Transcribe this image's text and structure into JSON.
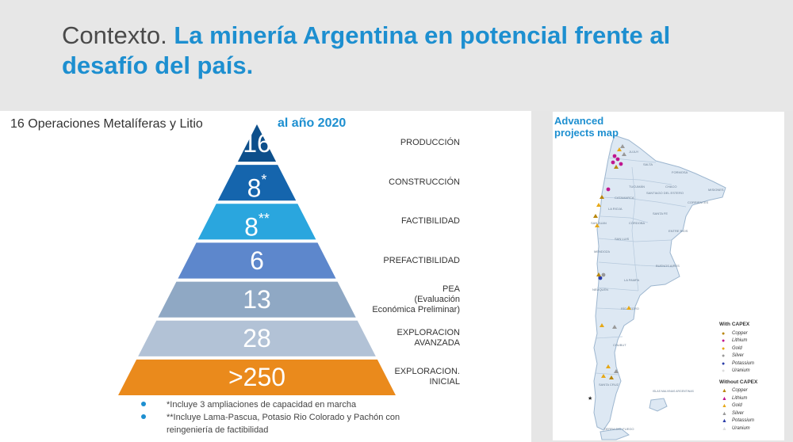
{
  "header": {
    "title_pre": "Contexto.",
    "title_main": "La minería Argentina en potencial frente al desafío del país."
  },
  "pyramid": {
    "label": "16 Operaciones Metalíferas y Litio",
    "year": "al año 2020",
    "tiers": [
      {
        "number": "16",
        "sup": "",
        "stage": "PRODUCCIÓN",
        "color": "#0d4f8b"
      },
      {
        "number": "8",
        "sup": "*",
        "stage": "CONSTRUCCIÓN",
        "color": "#1565ad"
      },
      {
        "number": "8",
        "sup": "**",
        "stage": "FACTIBILIDAD",
        "color": "#2aa6de"
      },
      {
        "number": "6",
        "sup": "",
        "stage": "PREFACTIBILIDAD",
        "color": "#5d87cc"
      },
      {
        "number": "13",
        "sup": "",
        "stage": "PEA\n(Evaluación\nEconómica Preliminar)",
        "color": "#8fa8c4"
      },
      {
        "number": "28",
        "sup": "",
        "stage": "EXPLORACION\nAVANZADA",
        "color": "#b2c2d6"
      },
      {
        "number": ">250",
        "sup": "",
        "stage": "EXPLORACION.\nINICIAL",
        "color": "#ea8a1c"
      }
    ]
  },
  "notes": [
    "*Incluye 3 ampliaciones de capacidad en marcha",
    "**Incluye Lama-Pascua, Potasio Rio Colorado y Pachón con reingeniería de factibilidad"
  ],
  "map": {
    "title": "Advanced projects map",
    "legend_with": {
      "heading": "With CAPEX",
      "items": [
        {
          "label": "Copper",
          "color": "#b8860b",
          "icon": "circle-icon"
        },
        {
          "label": "Lithium",
          "color": "#c0168f",
          "icon": "circle-icon"
        },
        {
          "label": "Gold",
          "color": "#e6a817",
          "icon": "circle-icon"
        },
        {
          "label": "Silver",
          "color": "#999999",
          "icon": "circle-icon"
        },
        {
          "label": "Potassium",
          "color": "#2b3da8",
          "icon": "circle-icon"
        },
        {
          "label": "Uranium",
          "color": "#dddddd",
          "icon": "circle-icon"
        }
      ]
    },
    "legend_without": {
      "heading": "Without CAPEX",
      "items": [
        {
          "label": "Copper",
          "color": "#b8860b",
          "icon": "triangle-icon"
        },
        {
          "label": "Lithium",
          "color": "#c0168f",
          "icon": "triangle-icon"
        },
        {
          "label": "Gold",
          "color": "#e6a817",
          "icon": "triangle-icon"
        },
        {
          "label": "Silver",
          "color": "#999999",
          "icon": "triangle-icon"
        },
        {
          "label": "Potassium",
          "color": "#2b3da8",
          "icon": "triangle-icon"
        },
        {
          "label": "Uranium",
          "color": "#dddddd",
          "icon": "triangle-icon"
        }
      ]
    },
    "provinces": [
      "JUJUY",
      "SALTA",
      "FORMOSA",
      "CHACO",
      "TUCUMÁN",
      "SANTIAGO DEL ESTERO",
      "MISIONES",
      "CATAMARCA",
      "CORRIENTES",
      "LA RIOJA",
      "SANTA FE",
      "SAN JUAN",
      "CÓRDOBA",
      "ENTRE RIOS",
      "SAN LUIS",
      "MENDOZA",
      "BUENOS AIRES",
      "LA PAMPA",
      "NEUQUÉN",
      "RÍO NEGRO",
      "CHUBUT",
      "SANTA CRUZ",
      "ISLAS MALVINAS ARGENTINAS",
      "TIERRA DEL FUEGO"
    ]
  }
}
